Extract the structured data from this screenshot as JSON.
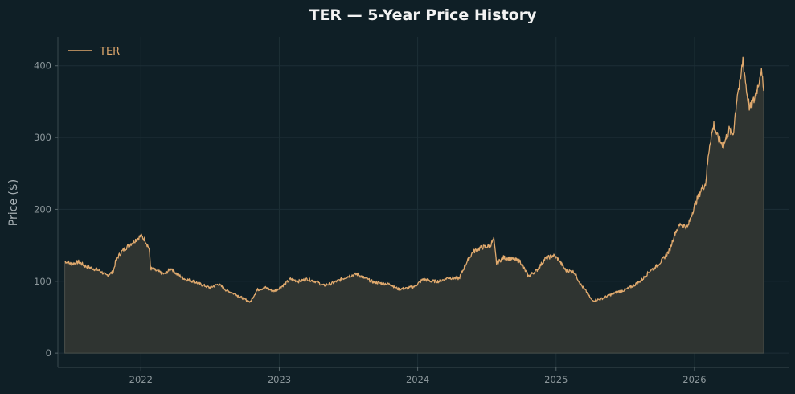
{
  "chart_data": {
    "type": "area",
    "title": "TER — 5-Year Price History",
    "xlabel": "",
    "ylabel": "Price ($)",
    "xlim": [
      2021.4,
      2026.68
    ],
    "ylim": [
      -20,
      440
    ],
    "x_ticks": [
      "2022",
      "2023",
      "2024",
      "2025",
      "2026"
    ],
    "y_ticks": [
      "0",
      "100",
      "200",
      "300",
      "400"
    ],
    "grid": true,
    "legend": "top-left",
    "series": [
      {
        "name": "TER",
        "color": "#e0a96d",
        "fill_color": "#2f3431",
        "points": [
          [
            2021.45,
            128
          ],
          [
            2021.5,
            124
          ],
          [
            2021.55,
            127
          ],
          [
            2021.6,
            121
          ],
          [
            2021.65,
            118
          ],
          [
            2021.7,
            115
          ],
          [
            2021.75,
            108
          ],
          [
            2021.8,
            113
          ],
          [
            2021.82,
            130
          ],
          [
            2021.86,
            141
          ],
          [
            2021.9,
            148
          ],
          [
            2021.95,
            156
          ],
          [
            2022.0,
            163
          ],
          [
            2022.03,
            158
          ],
          [
            2022.06,
            145
          ],
          [
            2022.07,
            118
          ],
          [
            2022.12,
            114
          ],
          [
            2022.17,
            110
          ],
          [
            2022.22,
            118
          ],
          [
            2022.26,
            110
          ],
          [
            2022.32,
            103
          ],
          [
            2022.38,
            100
          ],
          [
            2022.44,
            95
          ],
          [
            2022.5,
            91
          ],
          [
            2022.56,
            96
          ],
          [
            2022.62,
            87
          ],
          [
            2022.68,
            82
          ],
          [
            2022.74,
            76
          ],
          [
            2022.79,
            71
          ],
          [
            2022.84,
            88
          ],
          [
            2022.9,
            91
          ],
          [
            2022.96,
            86
          ],
          [
            2023.02,
            93
          ],
          [
            2023.08,
            103
          ],
          [
            2023.14,
            100
          ],
          [
            2023.2,
            103
          ],
          [
            2023.26,
            100
          ],
          [
            2023.32,
            94
          ],
          [
            2023.38,
            97
          ],
          [
            2023.44,
            102
          ],
          [
            2023.5,
            107
          ],
          [
            2023.56,
            110
          ],
          [
            2023.62,
            104
          ],
          [
            2023.68,
            99
          ],
          [
            2023.74,
            97
          ],
          [
            2023.8,
            96
          ],
          [
            2023.86,
            89
          ],
          [
            2023.92,
            90
          ],
          [
            2023.98,
            93
          ],
          [
            2024.04,
            103
          ],
          [
            2024.1,
            100
          ],
          [
            2024.16,
            100
          ],
          [
            2024.22,
            105
          ],
          [
            2024.3,
            104
          ],
          [
            2024.35,
            125
          ],
          [
            2024.4,
            141
          ],
          [
            2024.46,
            147
          ],
          [
            2024.52,
            149
          ],
          [
            2024.55,
            158
          ],
          [
            2024.57,
            125
          ],
          [
            2024.62,
            133
          ],
          [
            2024.68,
            131
          ],
          [
            2024.74,
            128
          ],
          [
            2024.8,
            107
          ],
          [
            2024.86,
            115
          ],
          [
            2024.92,
            131
          ],
          [
            2024.98,
            136
          ],
          [
            2025.02,
            130
          ],
          [
            2025.07,
            115
          ],
          [
            2025.13,
            113
          ],
          [
            2025.18,
            95
          ],
          [
            2025.22,
            85
          ],
          [
            2025.26,
            73
          ],
          [
            2025.32,
            75
          ],
          [
            2025.38,
            80
          ],
          [
            2025.44,
            85
          ],
          [
            2025.5,
            88
          ],
          [
            2025.56,
            94
          ],
          [
            2025.62,
            102
          ],
          [
            2025.68,
            115
          ],
          [
            2025.72,
            120
          ],
          [
            2025.77,
            130
          ],
          [
            2025.82,
            143
          ],
          [
            2025.86,
            168
          ],
          [
            2025.9,
            180
          ],
          [
            2025.95,
            175
          ],
          [
            2026.0,
            205
          ],
          [
            2026.05,
            228
          ],
          [
            2026.08,
            236
          ],
          [
            2026.11,
            292
          ],
          [
            2026.14,
            318
          ],
          [
            2026.17,
            298
          ],
          [
            2026.21,
            290
          ],
          [
            2026.25,
            310
          ],
          [
            2026.28,
            305
          ],
          [
            2026.31,
            362
          ],
          [
            2026.33,
            375
          ],
          [
            2026.35,
            410
          ],
          [
            2026.38,
            360
          ],
          [
            2026.4,
            340
          ],
          [
            2026.43,
            352
          ],
          [
            2026.46,
            373
          ],
          [
            2026.48,
            395
          ],
          [
            2026.5,
            365
          ]
        ]
      }
    ]
  }
}
